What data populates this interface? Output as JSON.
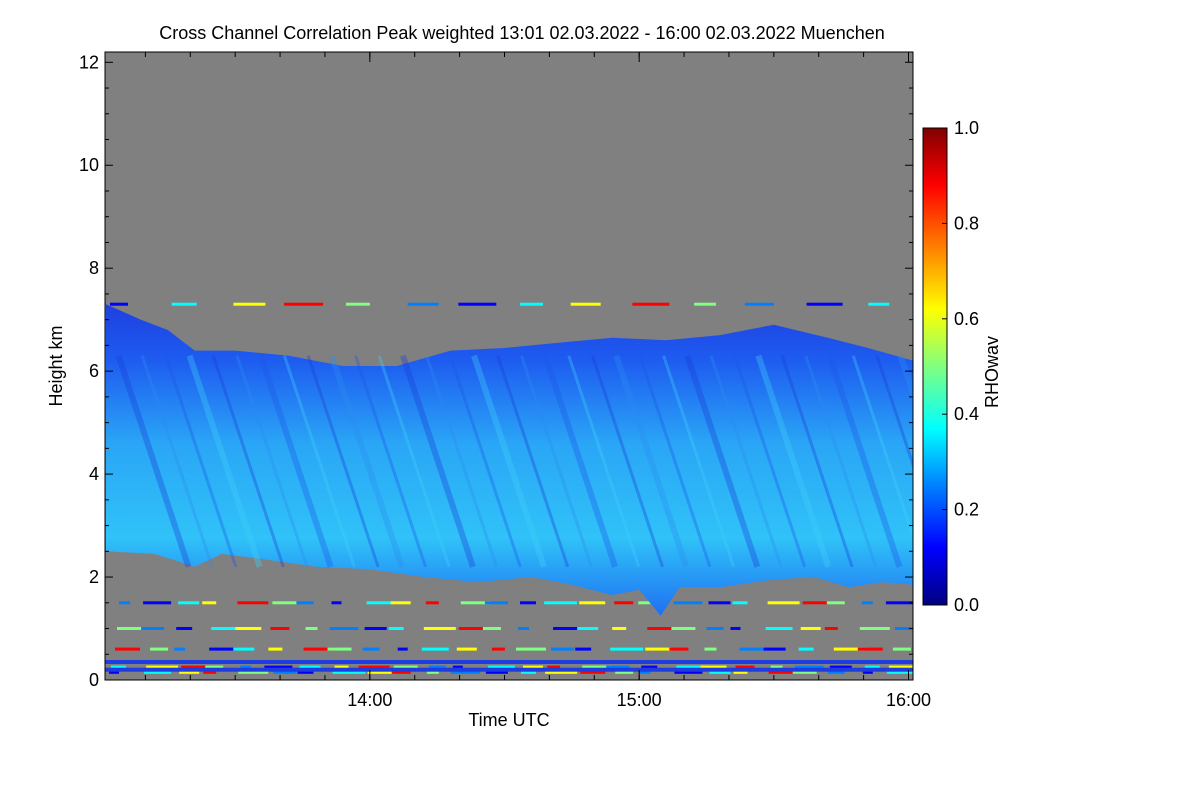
{
  "chart_data": {
    "type": "heatmap",
    "title": "Cross Channel Correlation Peak weighted   13:01 02.03.2022 - 16:00 02.03.2022 Muenchen",
    "xlabel": "Time UTC",
    "ylabel": "Height km",
    "x_range_hours": [
      13.0167,
      16.0167
    ],
    "y_range_km": [
      0,
      12.2
    ],
    "x_ticks": [
      {
        "hour": 14,
        "label": "14:00"
      },
      {
        "hour": 15,
        "label": "15:00"
      },
      {
        "hour": 16,
        "label": "16:00"
      }
    ],
    "y_ticks": [
      {
        "value": 0,
        "label": "0"
      },
      {
        "value": 2,
        "label": "2"
      },
      {
        "value": 4,
        "label": "4"
      },
      {
        "value": 6,
        "label": "6"
      },
      {
        "value": 8,
        "label": "8"
      },
      {
        "value": 10,
        "label": "10"
      },
      {
        "value": 12,
        "label": "12"
      }
    ],
    "background_color": "#808080",
    "colorbar": {
      "label": "RHOwav",
      "range": [
        0,
        1
      ],
      "ticks": [
        {
          "value": 0.0,
          "label": "0.0"
        },
        {
          "value": 0.2,
          "label": "0.2"
        },
        {
          "value": 0.4,
          "label": "0.4"
        },
        {
          "value": 0.6,
          "label": "0.6"
        },
        {
          "value": 0.8,
          "label": "0.8"
        },
        {
          "value": 1.0,
          "label": "1.0"
        }
      ],
      "colors": [
        "#000080",
        "#0000ff",
        "#0080ff",
        "#00ffff",
        "#80ff80",
        "#ffff00",
        "#ff8000",
        "#ff0000",
        "#800000"
      ]
    },
    "cloud_layer": {
      "typical_value": 0.3,
      "base_km": [
        {
          "hour": 13.02,
          "km": 2.5
        },
        {
          "hour": 13.2,
          "km": 2.45
        },
        {
          "hour": 13.35,
          "km": 2.2
        },
        {
          "hour": 13.45,
          "km": 2.45
        },
        {
          "hour": 13.6,
          "km": 2.35
        },
        {
          "hour": 13.8,
          "km": 2.2
        },
        {
          "hour": 14.0,
          "km": 2.15
        },
        {
          "hour": 14.2,
          "km": 2.0
        },
        {
          "hour": 14.4,
          "km": 1.9
        },
        {
          "hour": 14.6,
          "km": 2.0
        },
        {
          "hour": 14.75,
          "km": 1.85
        },
        {
          "hour": 14.9,
          "km": 1.65
        },
        {
          "hour": 15.0,
          "km": 1.75
        },
        {
          "hour": 15.08,
          "km": 1.25
        },
        {
          "hour": 15.15,
          "km": 1.8
        },
        {
          "hour": 15.3,
          "km": 1.8
        },
        {
          "hour": 15.5,
          "km": 1.95
        },
        {
          "hour": 15.65,
          "km": 2.0
        },
        {
          "hour": 15.78,
          "km": 1.8
        },
        {
          "hour": 15.9,
          "km": 1.9
        },
        {
          "hour": 16.02,
          "km": 1.85
        }
      ],
      "top_km": [
        {
          "hour": 13.02,
          "km": 7.3
        },
        {
          "hour": 13.15,
          "km": 7.0
        },
        {
          "hour": 13.25,
          "km": 6.8
        },
        {
          "hour": 13.35,
          "km": 6.4
        },
        {
          "hour": 13.5,
          "km": 6.4
        },
        {
          "hour": 13.7,
          "km": 6.3
        },
        {
          "hour": 13.9,
          "km": 6.1
        },
        {
          "hour": 14.1,
          "km": 6.1
        },
        {
          "hour": 14.3,
          "km": 6.4
        },
        {
          "hour": 14.5,
          "km": 6.45
        },
        {
          "hour": 14.7,
          "km": 6.55
        },
        {
          "hour": 14.9,
          "km": 6.65
        },
        {
          "hour": 15.1,
          "km": 6.6
        },
        {
          "hour": 15.3,
          "km": 6.7
        },
        {
          "hour": 15.5,
          "km": 6.9
        },
        {
          "hour": 15.7,
          "km": 6.65
        },
        {
          "hour": 15.85,
          "km": 6.45
        },
        {
          "hour": 16.02,
          "km": 6.2
        }
      ]
    },
    "thin_layers_km": [
      0.15,
      0.25,
      0.35,
      0.6,
      1.0,
      1.5,
      7.3
    ]
  }
}
